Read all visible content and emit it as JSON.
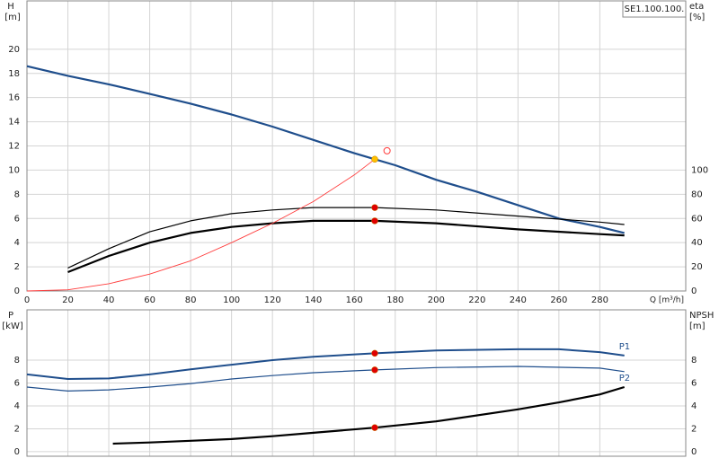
{
  "chart_data": [
    {
      "type": "line",
      "title": "SE1.100.100.",
      "y_label": "H",
      "y_unit": "[m]",
      "y2_label": "eta",
      "y2_unit": "[%]",
      "x_label": "Q [m³/h]",
      "xlim": [
        0,
        322
      ],
      "xticks": [
        0,
        20,
        40,
        60,
        80,
        100,
        120,
        140,
        160,
        180,
        200,
        220,
        240,
        260,
        280
      ],
      "show_xtick_labels": true,
      "ylim": [
        0,
        24
      ],
      "yticks": [
        0,
        2,
        4,
        6,
        8,
        10,
        12,
        14,
        16,
        18,
        20
      ],
      "y2lim": [
        0,
        240
      ],
      "y2ticks": [
        0,
        20,
        40,
        60,
        80,
        100
      ],
      "grid": true,
      "series": [
        {
          "color": "#1f4e8c",
          "width": 2.2,
          "axis": "y",
          "x": [
            0,
            20,
            40,
            60,
            80,
            100,
            120,
            140,
            160,
            170,
            180,
            200,
            220,
            240,
            260,
            280,
            292
          ],
          "values": [
            18.6,
            17.8,
            17.1,
            16.3,
            15.5,
            14.6,
            13.6,
            12.5,
            11.4,
            10.9,
            10.4,
            9.2,
            8.2,
            7.1,
            6.0,
            5.3,
            4.8
          ]
        },
        {
          "color": "#000000",
          "width": 2.2,
          "axis": "y2",
          "x": [
            20,
            40,
            60,
            80,
            100,
            120,
            140,
            170,
            200,
            240,
            280,
            292
          ],
          "values": [
            15.6,
            29,
            40,
            48,
            53,
            56,
            58,
            58,
            56,
            51,
            47,
            46
          ]
        },
        {
          "color": "#000000",
          "width": 1.2,
          "axis": "y2",
          "x": [
            20,
            40,
            60,
            80,
            100,
            120,
            140,
            170,
            200,
            240,
            280,
            292
          ],
          "values": [
            19,
            35,
            49,
            58,
            64,
            67,
            69,
            69,
            67,
            62,
            57,
            55
          ]
        },
        {
          "color": "#ff3b3b",
          "width": 0.9,
          "axis": "y",
          "x": [
            0,
            20,
            40,
            60,
            80,
            100,
            120,
            140,
            160,
            170
          ],
          "values": [
            0,
            0.1,
            0.6,
            1.4,
            2.5,
            4.0,
            5.6,
            7.4,
            9.6,
            10.9
          ]
        },
        {
          "color": "#ffc000",
          "marker": "dot",
          "axis": "y",
          "x": [
            170
          ],
          "values": [
            10.9
          ]
        },
        {
          "color": "#ff3b3b",
          "marker": "open",
          "axis": "y",
          "x": [
            176
          ],
          "values": [
            11.6
          ]
        },
        {
          "color": "#e00000",
          "marker": "dot",
          "axis": "y2",
          "x": [
            170,
            170
          ],
          "values": [
            69,
            58
          ]
        }
      ]
    },
    {
      "type": "line",
      "y_label": "P",
      "y_unit": "[kW]",
      "y2_label": "NPSH",
      "y2_unit": "[m]",
      "xlim": [
        0,
        322
      ],
      "xticks": [
        0,
        20,
        40,
        60,
        80,
        100,
        120,
        140,
        160,
        180,
        200,
        220,
        240,
        260,
        280
      ],
      "show_xtick_labels": false,
      "ylim": [
        -0.4,
        12.4
      ],
      "yticks": [
        0,
        2,
        4,
        6,
        8
      ],
      "y2lim": [
        -0.4,
        12.4
      ],
      "y2ticks": [
        0,
        2,
        4,
        6,
        8
      ],
      "grid": true,
      "series": [
        {
          "name": "P1",
          "label_anchor": "above",
          "color": "#1f4e8c",
          "width": 2,
          "axis": "y",
          "x": [
            0,
            20,
            40,
            60,
            80,
            100,
            120,
            140,
            170,
            200,
            240,
            260,
            280,
            292
          ],
          "values": [
            6.75,
            6.35,
            6.4,
            6.75,
            7.2,
            7.6,
            8.0,
            8.3,
            8.6,
            8.85,
            8.95,
            8.95,
            8.7,
            8.4
          ]
        },
        {
          "name": "P2",
          "label_anchor": "below",
          "color": "#1f4e8c",
          "width": 1.2,
          "axis": "y",
          "x": [
            0,
            20,
            40,
            60,
            80,
            100,
            120,
            140,
            170,
            200,
            240,
            280,
            292
          ],
          "values": [
            5.65,
            5.3,
            5.4,
            5.65,
            5.95,
            6.35,
            6.65,
            6.9,
            7.15,
            7.35,
            7.45,
            7.3,
            7.0
          ]
        },
        {
          "color": "#000000",
          "width": 2.2,
          "axis": "y2",
          "x": [
            42,
            60,
            80,
            100,
            120,
            140,
            170,
            200,
            240,
            260,
            280,
            292
          ],
          "values": [
            0.7,
            0.8,
            0.95,
            1.1,
            1.35,
            1.65,
            2.1,
            2.65,
            3.7,
            4.3,
            5.0,
            5.65
          ]
        },
        {
          "color": "#e00000",
          "marker": "dot",
          "axis": "y",
          "x": [
            170,
            170,
            170
          ],
          "values": [
            8.6,
            7.15,
            2.1
          ]
        }
      ]
    }
  ]
}
